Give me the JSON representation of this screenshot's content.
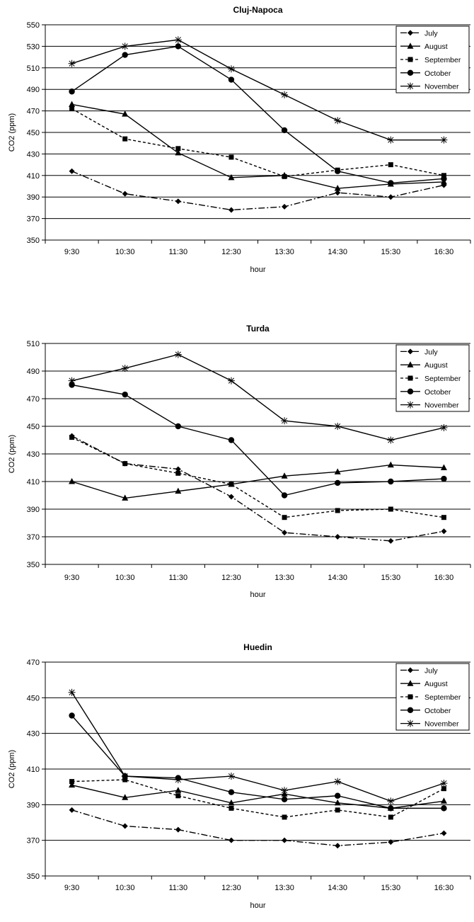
{
  "chart_data": [
    {
      "type": "line",
      "title": "Cluj-Napoca",
      "xlabel": "hour",
      "ylabel": "CO2 (ppm)",
      "ylim": [
        350,
        550
      ],
      "ytick_step": 20,
      "grid": "horizontal",
      "legend_position": "top-right",
      "categories": [
        "9:30",
        "10:30",
        "11:30",
        "12:30",
        "13:30",
        "14:30",
        "15:30",
        "16:30"
      ],
      "series": [
        {
          "name": "July",
          "marker": "diamond",
          "dash": "dashdot",
          "values": [
            414,
            393,
            386,
            378,
            381,
            394,
            390,
            401
          ]
        },
        {
          "name": "August",
          "marker": "triangle",
          "dash": "solid",
          "values": [
            476,
            467,
            431,
            408,
            410,
            398,
            402,
            404
          ]
        },
        {
          "name": "September",
          "marker": "square",
          "dash": "dotted",
          "values": [
            472,
            444,
            435,
            427,
            409,
            415,
            420,
            410
          ]
        },
        {
          "name": "October",
          "marker": "circle",
          "dash": "solid",
          "values": [
            488,
            522,
            530,
            499,
            452,
            414,
            403,
            407
          ]
        },
        {
          "name": "November",
          "marker": "star",
          "dash": "solid",
          "values": [
            514,
            530,
            536,
            509,
            485,
            461,
            443,
            443
          ]
        }
      ]
    },
    {
      "type": "line",
      "title": "Turda",
      "xlabel": "hour",
      "ylabel": "CO2 (ppm)",
      "ylim": [
        350,
        510
      ],
      "ytick_step": 20,
      "grid": "horizontal",
      "legend_position": "top-right",
      "categories": [
        "9:30",
        "10:30",
        "11:30",
        "12:30",
        "13:30",
        "14:30",
        "15:30",
        "16:30"
      ],
      "series": [
        {
          "name": "July",
          "marker": "diamond",
          "dash": "dashdot",
          "values": [
            443,
            423,
            419,
            399,
            373,
            370,
            367,
            374
          ]
        },
        {
          "name": "August",
          "marker": "triangle",
          "dash": "solid",
          "values": [
            410,
            398,
            403,
            408,
            414,
            417,
            422,
            420
          ]
        },
        {
          "name": "September",
          "marker": "square",
          "dash": "dotted",
          "values": [
            442,
            423,
            416,
            408,
            384,
            389,
            390,
            384
          ]
        },
        {
          "name": "October",
          "marker": "circle",
          "dash": "solid",
          "values": [
            480,
            473,
            450,
            440,
            400,
            409,
            410,
            412
          ]
        },
        {
          "name": "November",
          "marker": "star",
          "dash": "solid",
          "values": [
            483,
            492,
            502,
            483,
            454,
            450,
            440,
            449
          ]
        }
      ]
    },
    {
      "type": "line",
      "title": "Huedin",
      "xlabel": "hour",
      "ylabel": "CO2 (ppm)",
      "ylim": [
        350,
        470
      ],
      "ytick_step": 20,
      "grid": "horizontal",
      "legend_position": "top-right",
      "categories": [
        "9:30",
        "10:30",
        "11:30",
        "12:30",
        "13:30",
        "14:30",
        "15:30",
        "16:30"
      ],
      "series": [
        {
          "name": "July",
          "marker": "diamond",
          "dash": "dashdot",
          "values": [
            387,
            378,
            376,
            370,
            370,
            367,
            369,
            374
          ]
        },
        {
          "name": "August",
          "marker": "triangle",
          "dash": "solid",
          "values": [
            401,
            394,
            398,
            391,
            396,
            391,
            388,
            392
          ]
        },
        {
          "name": "September",
          "marker": "square",
          "dash": "dotted",
          "values": [
            403,
            404,
            395,
            388,
            383,
            387,
            383,
            399
          ]
        },
        {
          "name": "October",
          "marker": "circle",
          "dash": "solid",
          "values": [
            440,
            406,
            405,
            397,
            393,
            395,
            388,
            388
          ]
        },
        {
          "name": "November",
          "marker": "star",
          "dash": "solid",
          "values": [
            453,
            406,
            404,
            406,
            398,
            403,
            392,
            402
          ]
        }
      ]
    }
  ]
}
